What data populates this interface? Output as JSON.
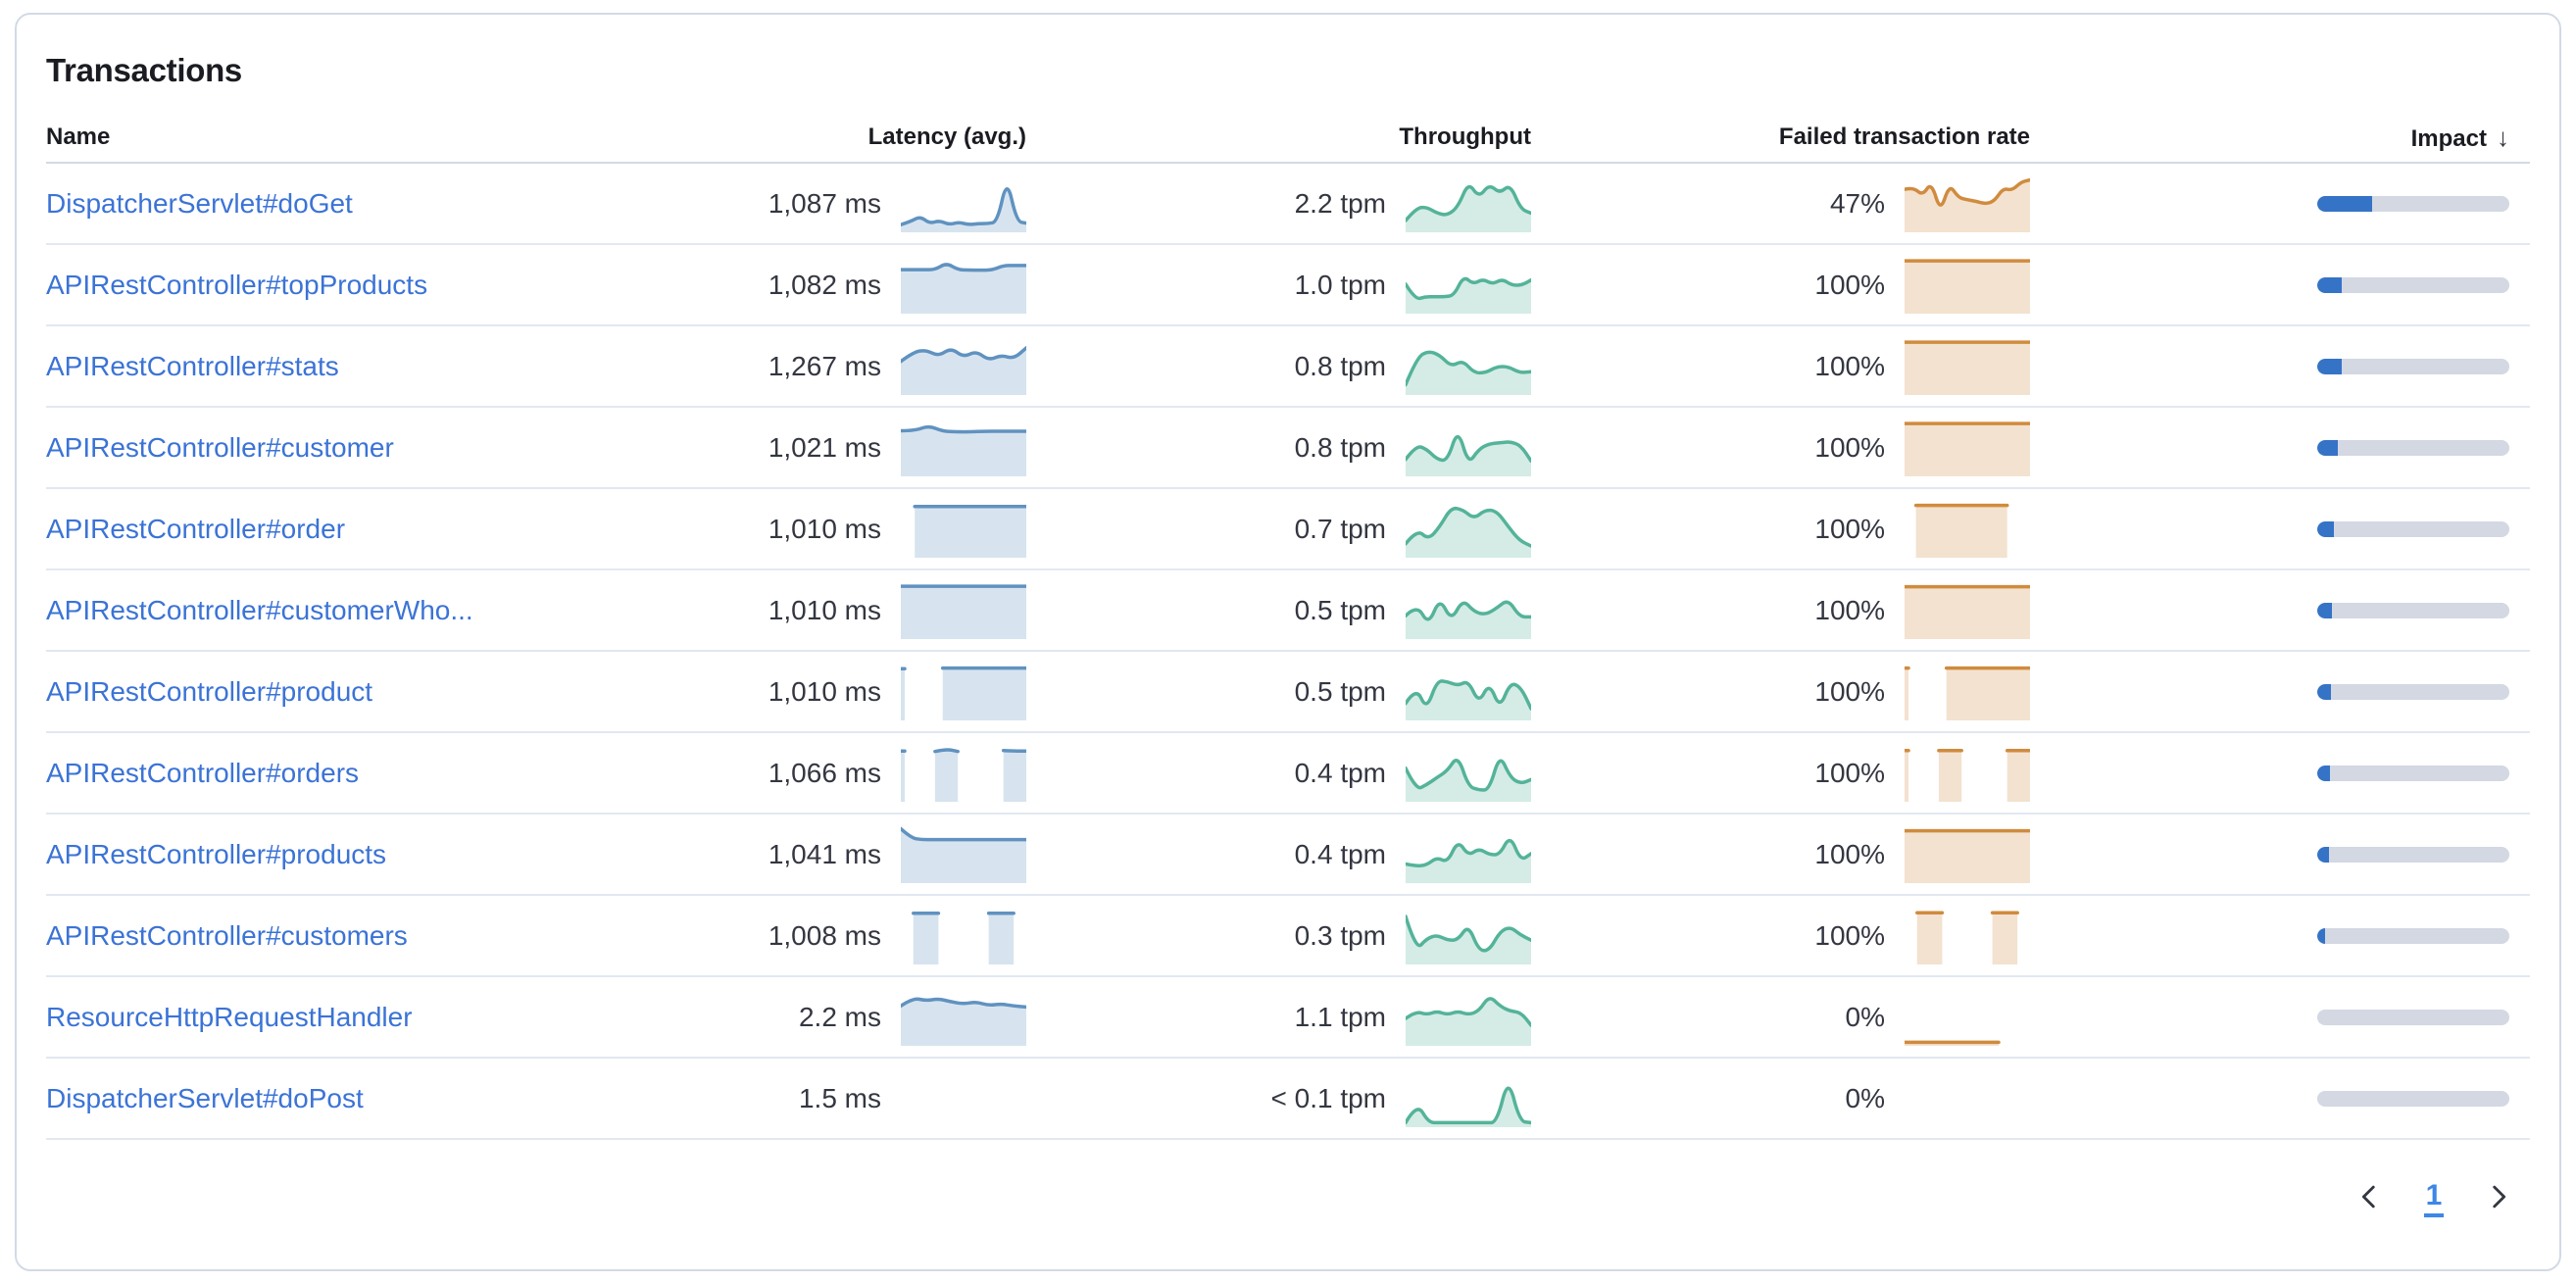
{
  "panel": {
    "title": "Transactions"
  },
  "table": {
    "columns": [
      {
        "id": "name",
        "label": "Name"
      },
      {
        "id": "latency",
        "label": "Latency (avg.)"
      },
      {
        "id": "throughput",
        "label": "Throughput"
      },
      {
        "id": "error_rate",
        "label": "Failed transaction rate"
      },
      {
        "id": "impact",
        "label": "Impact",
        "sort": "desc",
        "sort_icon": "↓"
      }
    ],
    "rows": [
      {
        "name": "DispatcherServlet#doGet",
        "latency": "1,087 ms",
        "throughput": "2.2 tpm",
        "error_rate": "47%",
        "impact": 0.285,
        "latency_spark": [
          0.1,
          0.16,
          0.26,
          0.12,
          0.18,
          0.1,
          0.15,
          0.1,
          0.12,
          0.12,
          0.15,
          1.0,
          0.16,
          0.13
        ],
        "throughput_spark": [
          0.18,
          0.42,
          0.44,
          0.32,
          0.28,
          0.44,
          0.92,
          0.62,
          0.88,
          0.7,
          0.88,
          0.4,
          0.32
        ],
        "error_spark": [
          0.78,
          0.82,
          0.66,
          0.92,
          0.34,
          0.88,
          0.62,
          0.58,
          0.55,
          0.5,
          0.55,
          0.8,
          0.76,
          0.92,
          0.96
        ]
      },
      {
        "name": "APIRestController#topProducts",
        "latency": "1,082 ms",
        "throughput": "1.0 tpm",
        "error_rate": "100%",
        "impact": 0.127,
        "latency_spark": [
          0.8,
          0.8,
          0.8,
          0.8,
          0.93,
          0.8,
          0.79,
          0.79,
          0.79,
          0.88,
          0.88,
          0.88
        ],
        "throughput_spark": [
          0.52,
          0.22,
          0.28,
          0.28,
          0.28,
          0.3,
          0.68,
          0.52,
          0.62,
          0.52,
          0.62,
          0.5,
          0.5,
          0.6
        ],
        "error_spark": [
          0.97,
          0.97,
          0.97,
          0.97,
          0.97,
          0.97,
          0.97,
          0.97,
          0.97,
          0.97,
          0.97,
          0.97
        ]
      },
      {
        "name": "APIRestController#stats",
        "latency": "1,267 ms",
        "throughput": "0.8 tpm",
        "error_rate": "100%",
        "impact": 0.127,
        "latency_spark": [
          0.6,
          0.78,
          0.82,
          0.7,
          0.86,
          0.68,
          0.8,
          0.62,
          0.72,
          0.65,
          0.86
        ],
        "throughput_spark": [
          0.15,
          0.68,
          0.8,
          0.72,
          0.5,
          0.62,
          0.38,
          0.38,
          0.5,
          0.5,
          0.38,
          0.4
        ],
        "error_spark": [
          0.97,
          0.97,
          0.97,
          0.97,
          0.97,
          0.97,
          0.97,
          0.97,
          0.97,
          0.97,
          0.97,
          0.97
        ]
      },
      {
        "name": "APIRestController#customer",
        "latency": "1,021 ms",
        "throughput": "0.8 tpm",
        "error_rate": "100%",
        "impact": 0.108,
        "latency_spark": [
          0.83,
          0.83,
          0.93,
          0.82,
          0.81,
          0.81,
          0.82,
          0.82,
          0.82,
          0.82
        ],
        "throughput_spark": [
          0.28,
          0.55,
          0.48,
          0.28,
          0.25,
          0.88,
          0.18,
          0.48,
          0.58,
          0.6,
          0.62,
          0.55,
          0.25
        ],
        "error_spark": [
          0.97,
          0.97,
          0.97,
          0.97,
          0.97,
          0.97,
          0.97,
          0.97,
          0.97,
          0.97,
          0.97,
          0.97
        ]
      },
      {
        "name": "APIRestController#order",
        "latency": "1,010 ms",
        "throughput": "0.7 tpm",
        "error_rate": "100%",
        "impact": 0.085,
        "latency_spark": [
          null,
          0.94,
          0.94,
          0.94,
          0.94,
          0.94,
          0.94,
          0.94,
          0.94,
          0.94
        ],
        "throughput_spark": [
          0.22,
          0.5,
          0.3,
          0.55,
          0.92,
          0.88,
          0.7,
          0.88,
          0.85,
          0.55,
          0.28,
          0.18
        ],
        "error_spark": [
          null,
          0.96,
          0.96,
          0.96,
          0.96,
          0.96,
          0.96,
          0.96,
          0.96,
          0.96,
          null,
          null
        ]
      },
      {
        "name": "APIRestController#customerWho...",
        "latency": "1,010 ms",
        "throughput": "0.5 tpm",
        "error_rate": "100%",
        "impact": 0.075,
        "latency_spark": [
          0.97,
          0.97,
          0.97,
          0.97,
          0.97,
          0.97,
          0.97,
          0.97,
          0.97,
          0.97
        ],
        "throughput_spark": [
          0.4,
          0.62,
          0.22,
          0.75,
          0.3,
          0.72,
          0.48,
          0.42,
          0.55,
          0.72,
          0.38,
          0.38
        ],
        "error_spark": [
          0.96,
          0.96,
          0.96,
          0.96,
          0.96,
          0.96,
          0.96,
          0.96,
          0.96,
          0.96,
          0.96,
          0.96
        ]
      },
      {
        "name": "APIRestController#product",
        "latency": "1,010 ms",
        "throughput": "0.5 tpm",
        "error_rate": "100%",
        "impact": 0.07,
        "latency_spark": [
          0.95,
          null,
          null,
          0.96,
          0.96,
          0.96,
          0.96,
          0.96,
          0.96,
          0.96
        ],
        "throughput_spark": [
          0.28,
          0.6,
          0.15,
          0.72,
          0.7,
          0.62,
          0.72,
          0.28,
          0.68,
          0.18,
          0.68,
          0.6,
          0.18
        ],
        "error_spark": [
          0.96,
          null,
          null,
          0.96,
          0.96,
          0.96,
          0.96,
          0.96,
          0.96,
          0.96
        ]
      },
      {
        "name": "APIRestController#orders",
        "latency": "1,066 ms",
        "throughput": "0.4 tpm",
        "error_rate": "100%",
        "impact": 0.065,
        "latency_spark": [
          0.93,
          null,
          null,
          0.92,
          0.97,
          0.92,
          null,
          null,
          null,
          0.94,
          0.93,
          0.93
        ],
        "throughput_spark": [
          0.6,
          0.18,
          0.28,
          0.42,
          0.55,
          0.85,
          0.25,
          0.18,
          0.18,
          0.88,
          0.42,
          0.3,
          0.38
        ],
        "error_spark": [
          0.94,
          null,
          null,
          0.94,
          0.94,
          0.94,
          null,
          null,
          null,
          0.94,
          0.94,
          0.94
        ]
      },
      {
        "name": "APIRestController#products",
        "latency": "1,041 ms",
        "throughput": "0.4 tpm",
        "error_rate": "100%",
        "impact": 0.06,
        "latency_spark": [
          1.0,
          0.82,
          0.79,
          0.79,
          0.79,
          0.79,
          0.79,
          0.79,
          0.79,
          0.79,
          0.79,
          0.79,
          0.79
        ],
        "throughput_spark": [
          0.32,
          0.28,
          0.3,
          0.45,
          0.35,
          0.78,
          0.48,
          0.62,
          0.5,
          0.5,
          0.88,
          0.38,
          0.52
        ],
        "error_spark": [
          0.96,
          0.96,
          0.96,
          0.96,
          0.96,
          0.96,
          0.96,
          0.96,
          0.96,
          0.96,
          0.96,
          0.96
        ]
      },
      {
        "name": "APIRestController#customers",
        "latency": "1,008 ms",
        "throughput": "0.3 tpm",
        "error_rate": "100%",
        "impact": 0.042,
        "latency_spark": [
          null,
          0.94,
          0.94,
          0.94,
          null,
          null,
          null,
          0.94,
          0.94,
          0.94,
          null
        ],
        "throughput_spark": [
          0.88,
          0.22,
          0.45,
          0.52,
          0.42,
          0.42,
          0.72,
          0.22,
          0.22,
          0.58,
          0.68,
          0.52,
          0.42
        ],
        "error_spark": [
          null,
          0.95,
          0.95,
          0.95,
          null,
          null,
          null,
          0.95,
          0.95,
          0.95,
          null
        ]
      },
      {
        "name": "ResourceHttpRequestHandler",
        "latency": "2.2 ms",
        "throughput": "1.1 tpm",
        "error_rate": "0%",
        "impact": 0,
        "latency_spark": [
          0.72,
          0.88,
          0.82,
          0.86,
          0.8,
          0.76,
          0.8,
          0.73,
          0.76,
          0.72,
          0.7
        ],
        "throughput_spark": [
          0.48,
          0.62,
          0.55,
          0.62,
          0.55,
          0.62,
          0.55,
          0.62,
          0.92,
          0.72,
          0.62,
          0.6,
          0.35
        ],
        "error_spark": [
          0.02,
          0.02,
          0.02,
          0.02,
          0.02,
          0.02,
          0.02,
          0.02,
          0.02,
          0.02,
          null,
          null,
          null
        ]
      },
      {
        "name": "DispatcherServlet#doPost",
        "latency": "1.5 ms",
        "throughput": "< 0.1 tpm",
        "error_rate": "0%",
        "impact": 0,
        "latency_spark": [],
        "throughput_spark": [
          0.04,
          0.42,
          0.04,
          0.04,
          0.04,
          0.04,
          0.04,
          0.04,
          0.04,
          0.92,
          0.06,
          0.04
        ],
        "error_spark": []
      }
    ]
  },
  "pagination": {
    "current_page": "1"
  },
  "colors": {
    "link": "#3b73d6",
    "latency_line": "#6092c0",
    "throughput_line": "#54b399",
    "error_line": "#d08b3e",
    "impact_fill": "#3573c7",
    "impact_track": "#d3d8e2"
  }
}
